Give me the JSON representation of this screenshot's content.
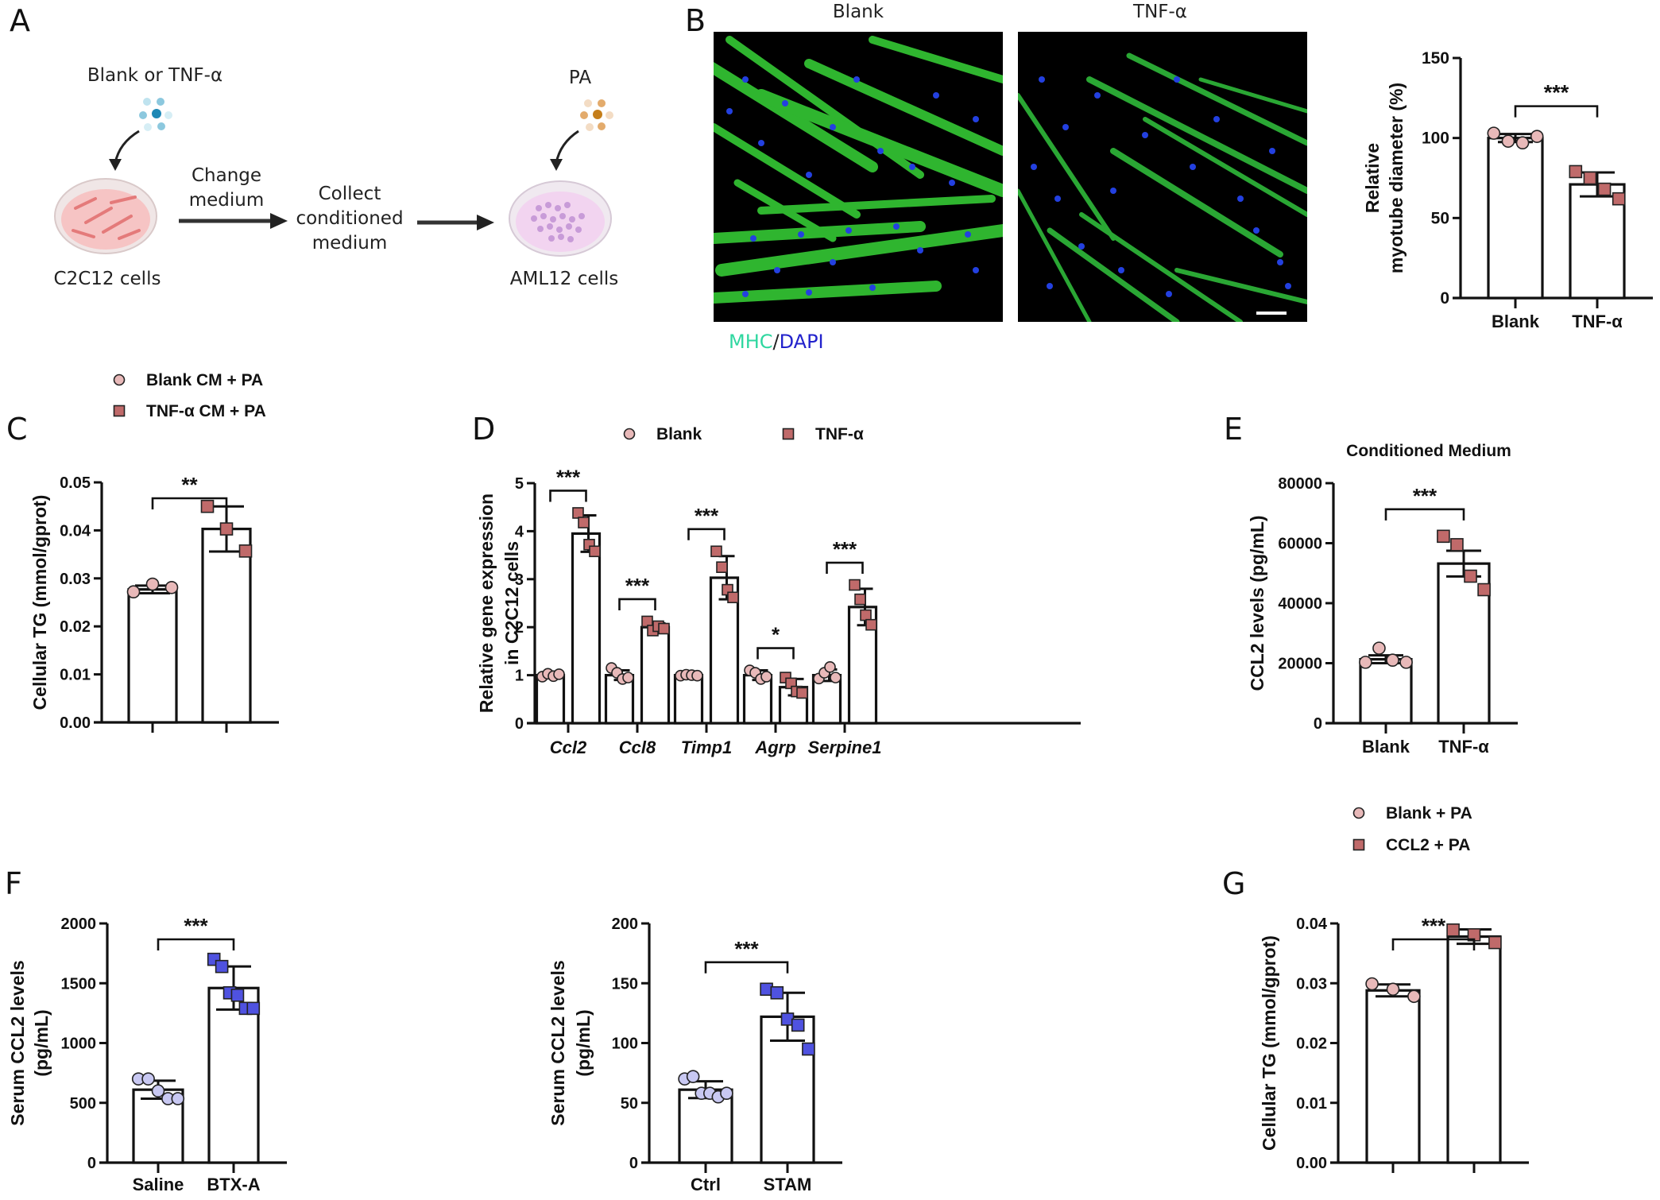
{
  "figure": {
    "panel_labels": [
      "A",
      "B",
      "C",
      "D",
      "E",
      "F",
      "G"
    ]
  },
  "panelA": {
    "treatment_label": "Blank or TNF-α",
    "pa_label": "PA",
    "step1_label": "Change\nmedium",
    "step2_label": "Collect\nconditioned\nmedium",
    "cell1_label": "C2C12 cells",
    "cell2_label": "AML12 cells",
    "colors": {
      "treatment_dots": "#5aaecc",
      "pa_dots": "#d89a4a",
      "dish1": "#f2b6b6",
      "dish2": "#e6c6ee"
    }
  },
  "panelB": {
    "image_titles": [
      "Blank",
      "TNF-α"
    ],
    "stain_mhc": "MHC",
    "stain_sep": "/",
    "stain_dapi": "DAPI",
    "colors": {
      "mhc": "#2fd7a0",
      "dapi": "#2222cc",
      "myotube": "#3ecf3e",
      "nuclei": "#1f3fe0"
    }
  },
  "colors": {
    "circle_fill": "#e8b9b9",
    "square_fill": "#c06a6a",
    "circle_blue": "#c8c8f2",
    "square_blue": "#4f52e0"
  },
  "chart_data": [
    {
      "id": "B-right",
      "type": "bar",
      "title": "",
      "xlabel": "",
      "ylabel": [
        "Relative",
        "myotube diameter (%)"
      ],
      "categories": [
        "Blank",
        "TNF-α"
      ],
      "values": [
        100,
        71
      ],
      "errors": [
        2.5,
        7.5
      ],
      "points": [
        [
          103,
          98,
          97,
          101
        ],
        [
          79,
          75,
          68,
          62
        ]
      ],
      "markers": [
        "circle",
        "square"
      ],
      "ylim": [
        0,
        150
      ],
      "yticks": [
        0,
        50,
        100,
        150
      ],
      "significance": [
        {
          "pair": [
            0,
            1
          ],
          "label": "***"
        }
      ]
    },
    {
      "id": "C",
      "type": "bar",
      "title": "",
      "legend": [
        "Blank CM + PA",
        "TNF-α CM + PA"
      ],
      "xlabel": "",
      "ylabel": [
        "Cellular TG (mmol/gprot)"
      ],
      "categories": [
        "Blank CM + PA",
        "TNF-α CM + PA"
      ],
      "values": [
        0.0277,
        0.0403
      ],
      "errors": [
        0.0008,
        0.0047
      ],
      "points": [
        [
          0.0272,
          0.0288,
          0.0281
        ],
        [
          0.045,
          0.0403,
          0.0357
        ]
      ],
      "markers": [
        "circle",
        "square"
      ],
      "ylim": [
        0,
        0.05
      ],
      "yticks": [
        0.0,
        0.01,
        0.02,
        0.03,
        0.04,
        0.05
      ],
      "tick_decimals": 2,
      "significance": [
        {
          "pair": [
            0,
            1
          ],
          "label": "**"
        }
      ]
    },
    {
      "id": "D",
      "type": "bar",
      "title": "",
      "legend": [
        "Blank",
        "TNF-α"
      ],
      "xlabel": "",
      "ylabel": [
        "Relative gene expression",
        "in C2C12 cells"
      ],
      "categories": [
        "Ccl2",
        "Ccl8",
        "Timp1",
        "Agrp",
        "Serpine1"
      ],
      "series": [
        {
          "name": "Blank",
          "values": [
            1.0,
            1.0,
            1.0,
            1.0,
            1.0
          ],
          "errors": [
            0.04,
            0.1,
            0.03,
            0.1,
            0.12
          ],
          "points": [
            [
              0.97,
              1.03,
              0.98,
              1.02
            ],
            [
              1.15,
              1.05,
              0.92,
              0.95
            ],
            [
              0.99,
              1.01,
              1.0,
              0.99
            ],
            [
              1.1,
              1.05,
              0.92,
              0.97
            ],
            [
              0.93,
              1.05,
              1.17,
              0.95
            ]
          ]
        },
        {
          "name": "TNF-α",
          "values": [
            3.95,
            2.0,
            3.03,
            0.75,
            2.42
          ],
          "errors": [
            0.38,
            0.08,
            0.45,
            0.17,
            0.38
          ],
          "points": [
            [
              4.38,
              4.18,
              3.72,
              3.58
            ],
            [
              2.12,
              1.93,
              2.02,
              1.97
            ],
            [
              3.58,
              3.25,
              2.78,
              2.62
            ],
            [
              0.95,
              0.83,
              0.66,
              0.63
            ],
            [
              2.88,
              2.58,
              2.25,
              2.05
            ]
          ]
        }
      ],
      "markers": [
        "circle",
        "square"
      ],
      "ylim": [
        0,
        5
      ],
      "yticks": [
        0,
        1,
        2,
        3,
        4,
        5
      ],
      "significance": [
        {
          "group": 0,
          "label": "***"
        },
        {
          "group": 1,
          "label": "***"
        },
        {
          "group": 2,
          "label": "***"
        },
        {
          "group": 3,
          "label": "*"
        },
        {
          "group": 4,
          "label": "***"
        }
      ]
    },
    {
      "id": "E",
      "type": "bar",
      "title": "Conditioned Medium",
      "xlabel": "",
      "ylabel": [
        "CCL2 levels (pg/mL)"
      ],
      "categories": [
        "Blank",
        "TNF-α"
      ],
      "values": [
        21300,
        53200
      ],
      "errors": [
        1300,
        4300
      ],
      "points": [
        [
          20300,
          25000,
          21000,
          20300
        ],
        [
          62300,
          59500,
          49000,
          44500
        ]
      ],
      "markers": [
        "circle",
        "square"
      ],
      "ylim": [
        0,
        80000
      ],
      "yticks": [
        0,
        20000,
        40000,
        60000,
        80000
      ],
      "significance": [
        {
          "pair": [
            0,
            1
          ],
          "label": "***"
        }
      ]
    },
    {
      "id": "F-left",
      "type": "bar",
      "title": "",
      "xlabel": "",
      "ylabel": [
        "Serum CCL2 levels",
        "(pg/mL)"
      ],
      "categories": [
        "Saline",
        "BTX-A"
      ],
      "values": [
        610,
        1460
      ],
      "errors": [
        75,
        180
      ],
      "points": [
        [
          700,
          700,
          600,
          535,
          535
        ],
        [
          1700,
          1640,
          1420,
          1400,
          1290,
          1290
        ]
      ],
      "markers": [
        "circle",
        "square"
      ],
      "colorset": "blue",
      "ylim": [
        0,
        2000
      ],
      "yticks": [
        0,
        500,
        1000,
        1500,
        2000
      ],
      "significance": [
        {
          "pair": [
            0,
            1
          ],
          "label": "***"
        }
      ]
    },
    {
      "id": "F-right",
      "type": "bar",
      "title": "",
      "xlabel": "",
      "ylabel": [
        "Serum CCL2 levels",
        "(pg/mL)"
      ],
      "categories": [
        "Ctrl",
        "STAM"
      ],
      "values": [
        61,
        122
      ],
      "errors": [
        7,
        20
      ],
      "points": [
        [
          70,
          72,
          58,
          58,
          55,
          58
        ],
        [
          145,
          142,
          120,
          115,
          95
        ]
      ],
      "markers": [
        "circle",
        "square"
      ],
      "colorset": "blue",
      "ylim": [
        0,
        200
      ],
      "yticks": [
        0,
        50,
        100,
        150,
        200
      ],
      "significance": [
        {
          "pair": [
            0,
            1
          ],
          "label": "***"
        }
      ]
    },
    {
      "id": "G",
      "type": "bar",
      "title": "",
      "legend": [
        "Blank + PA",
        "CCL2 + PA"
      ],
      "xlabel": "",
      "ylabel": [
        "Cellular TG (mmol/gprot)"
      ],
      "categories": [
        "Blank + PA",
        "CCL2 + PA"
      ],
      "values": [
        0.0288,
        0.0378
      ],
      "errors": [
        0.001,
        0.0012
      ],
      "points": [
        [
          0.0299,
          0.029,
          0.0278
        ],
        [
          0.0389,
          0.0381,
          0.0368
        ]
      ],
      "markers": [
        "circle",
        "square"
      ],
      "ylim": [
        0,
        0.04
      ],
      "yticks": [
        0.0,
        0.01,
        0.02,
        0.03,
        0.04
      ],
      "tick_decimals": 2,
      "significance": [
        {
          "pair": [
            0,
            1
          ],
          "label": "***"
        }
      ]
    }
  ]
}
